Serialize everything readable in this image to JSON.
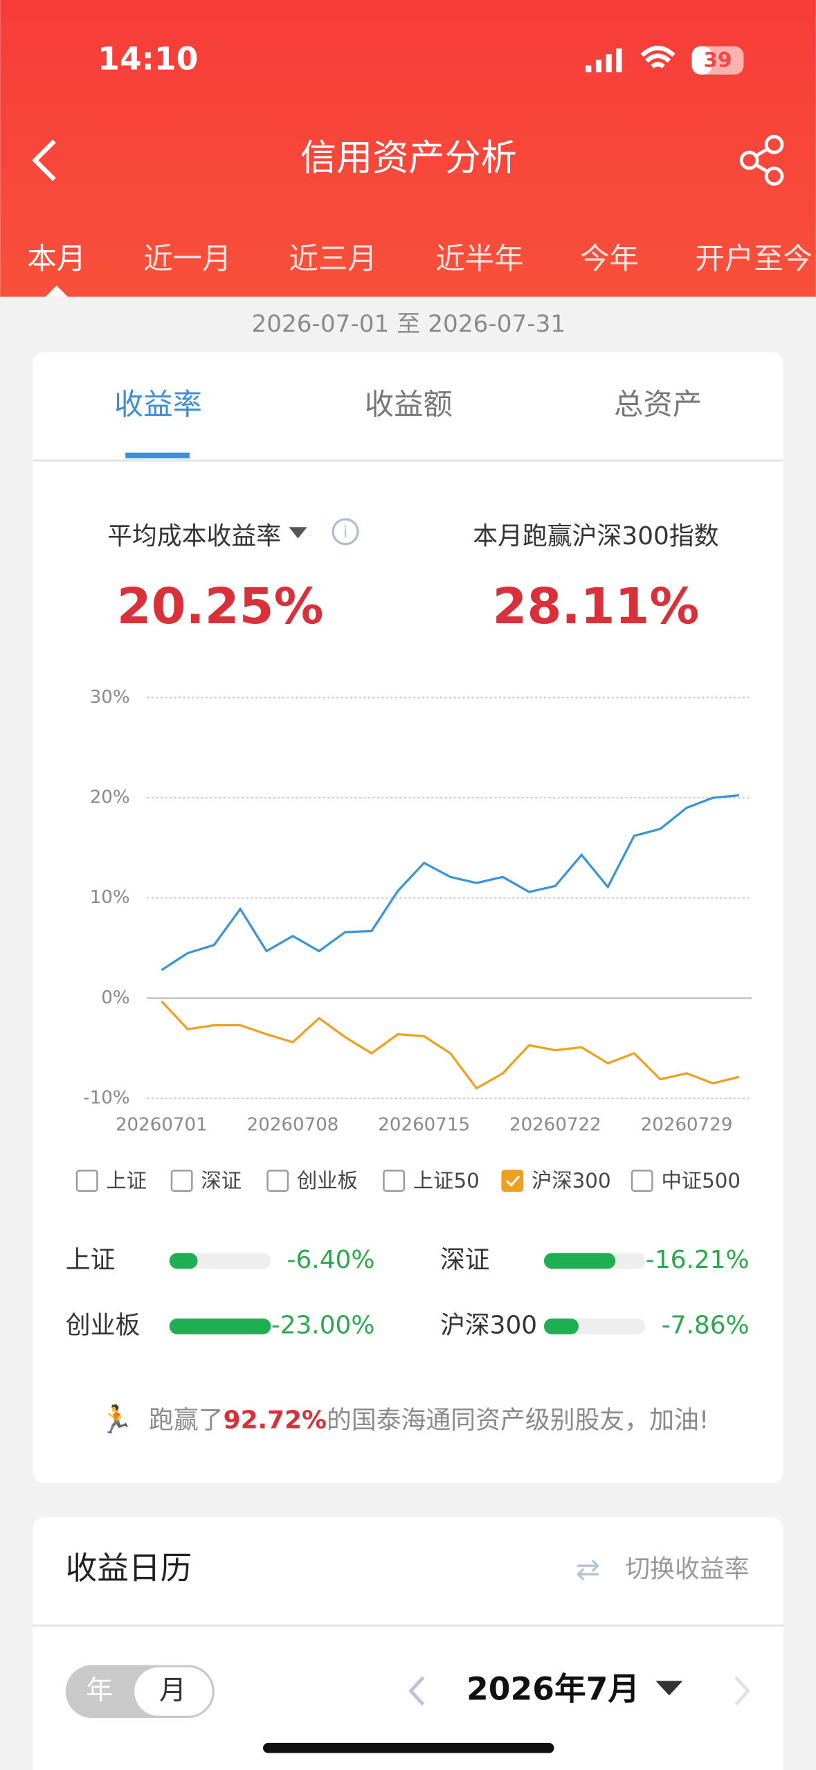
{
  "status_bar": {
    "time": "14:10",
    "battery": "39"
  },
  "header": {
    "title": "信用资产分析"
  },
  "period_tabs": [
    "本月",
    "近一月",
    "近三月",
    "近半年",
    "今年",
    "开户至今"
  ],
  "date_range": "2026-07-01 至 2026-07-31",
  "metric_tabs": [
    "收益率",
    "收益额",
    "总资产"
  ],
  "metrics": [
    {
      "label": "平均成本收益率",
      "value": "20.25%"
    },
    {
      "label": "本月跑赢沪深300指数",
      "value": "28.11%"
    }
  ],
  "chart_data": {
    "type": "line",
    "categories": [
      "20260701",
      null,
      null,
      null,
      null,
      "20260708",
      null,
      null,
      null,
      null,
      "20260715",
      null,
      null,
      null,
      null,
      "20260722",
      null,
      null,
      null,
      null,
      "20260729",
      null,
      null
    ],
    "series": [
      {
        "color": "#3a95d5",
        "values": [
          2.8,
          4.5,
          5.3,
          8.9,
          4.7,
          6.2,
          4.7,
          6.6,
          6.7,
          10.7,
          13.5,
          12.1,
          11.5,
          12.1,
          10.6,
          11.2,
          14.3,
          11.1,
          16.2,
          16.9,
          19.0,
          20.0,
          20.25
        ]
      },
      {
        "name": "沪深300",
        "color": "#f0a020",
        "values": [
          -0.3,
          -3.1,
          -2.7,
          -2.7,
          -3.6,
          -4.4,
          -2.0,
          -3.9,
          -5.5,
          -3.6,
          -3.8,
          -5.5,
          -9.0,
          -7.5,
          -4.7,
          -5.2,
          -4.9,
          -6.5,
          -5.5,
          -8.1,
          -7.5,
          -8.5,
          -7.86
        ]
      }
    ],
    "ylim": [
      -10,
      30
    ],
    "yticks": [
      {
        "value": -10,
        "label": "-10%"
      },
      {
        "value": 0,
        "label": "0%"
      },
      {
        "value": 10,
        "label": "10%"
      },
      {
        "value": 20,
        "label": "20%"
      },
      {
        "value": 30,
        "label": "30%"
      }
    ],
    "grid": true
  },
  "index_options": [
    {
      "label": "上证",
      "checked": false
    },
    {
      "label": "深证",
      "checked": false
    },
    {
      "label": "创业板",
      "checked": false
    },
    {
      "label": "上证50",
      "checked": false
    },
    {
      "label": "沪深300",
      "checked": true
    },
    {
      "label": "中证500",
      "checked": false
    }
  ],
  "index_returns": [
    {
      "name": "上证",
      "value": -6.4,
      "value_label": "-6.40%"
    },
    {
      "name": "深证",
      "value": -16.21,
      "value_label": "-16.21%"
    },
    {
      "name": "创业板",
      "value": -23.0,
      "value_label": "-23.00%"
    },
    {
      "name": "沪深300",
      "value": -7.86,
      "value_label": "-7.86%"
    }
  ],
  "rank_message": {
    "prefix": "跑赢了",
    "percent": "92.72%",
    "suffix": "的国泰海通同资产级别股友，加油!"
  },
  "calendar": {
    "title": "收益日历",
    "switch": "切换收益率",
    "toggle": [
      "年",
      "月"
    ],
    "month": "2026年7月"
  }
}
